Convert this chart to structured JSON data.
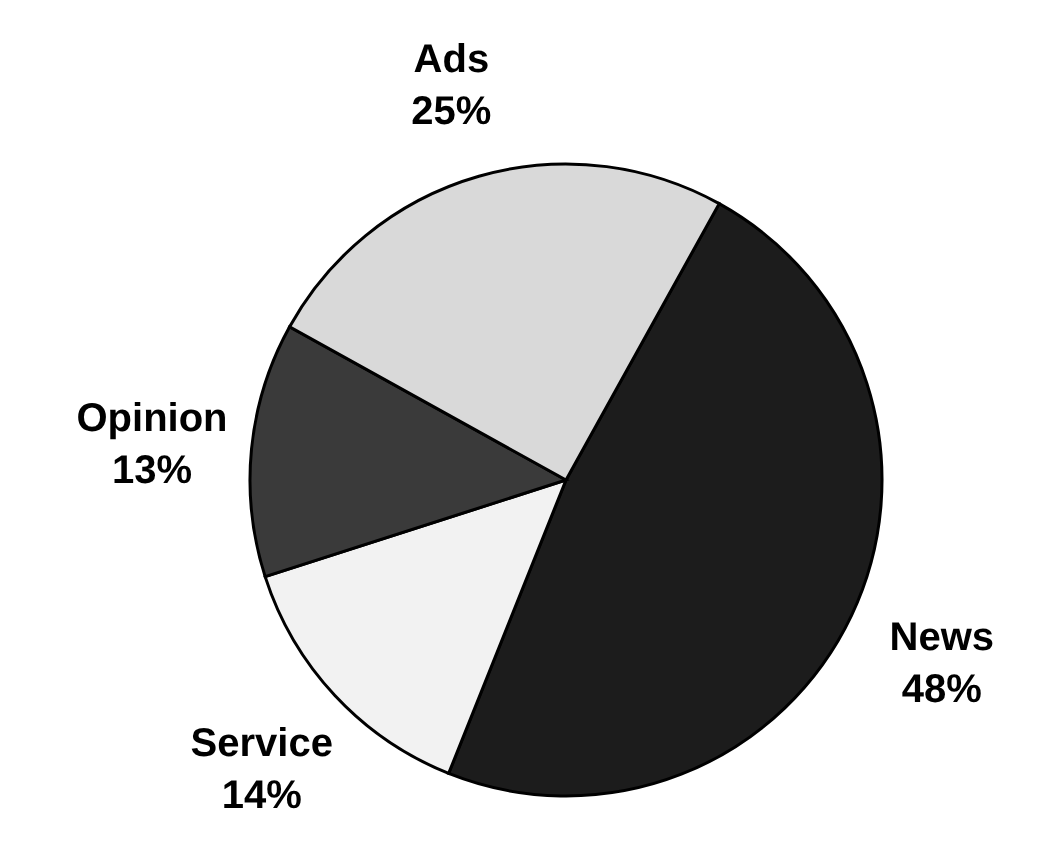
{
  "chart_data": {
    "type": "pie",
    "categories": [
      "News",
      "Service",
      "Opinion",
      "Ads"
    ],
    "values": [
      48,
      14,
      13,
      25
    ],
    "value_labels": [
      "48%",
      "14%",
      "13%",
      "25%"
    ],
    "colors": [
      "#1c1c1c",
      "#f2f2f2",
      "#3a3a3a",
      "#d9d9d9"
    ]
  }
}
